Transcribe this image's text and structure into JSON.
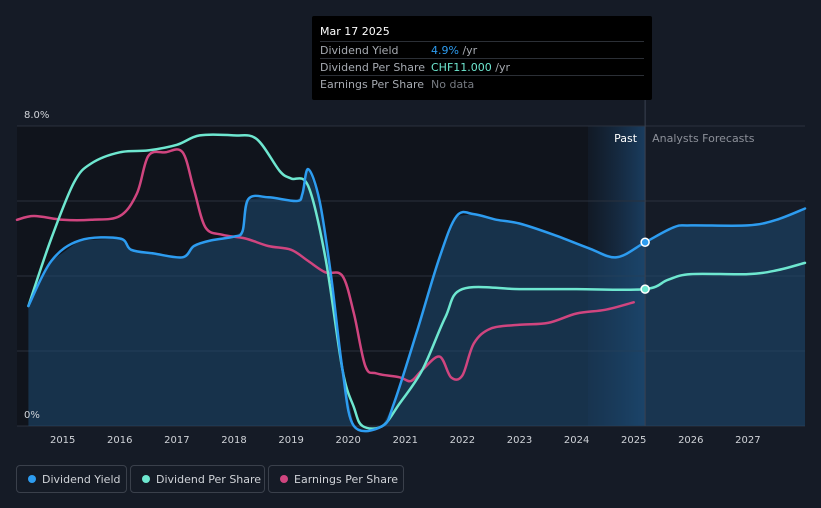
{
  "tooltip": {
    "date": "Mar 17 2025",
    "rows": [
      {
        "label": "Dividend Yield",
        "value": "4.9%",
        "unit": " /yr",
        "color": "#2d9cf0"
      },
      {
        "label": "Dividend Per Share",
        "value": "CHF11.000",
        "unit": " /yr",
        "color": "#6ee7d0"
      },
      {
        "label": "Earnings Per Share",
        "value": "No data",
        "unit": "",
        "color": "#777b82"
      }
    ]
  },
  "legend": [
    {
      "label": "Dividend Yield",
      "color": "#2d9cf0"
    },
    {
      "label": "Dividend Per Share",
      "color": "#6ee7d0"
    },
    {
      "label": "Earnings Per Share",
      "color": "#d0457f"
    }
  ],
  "chart_data": {
    "type": "line",
    "y_tick_labels": [
      "8.0%",
      "0%"
    ],
    "ylim": [
      0,
      8
    ],
    "xlim": [
      2014.2,
      2028.0
    ],
    "x_ticks": [
      2015,
      2016,
      2017,
      2018,
      2019,
      2020,
      2021,
      2022,
      2023,
      2024,
      2025,
      2026,
      2027
    ],
    "forecast_start": 2025.2,
    "past_label": "Past",
    "forecast_label": "Analysts Forecasts",
    "series": [
      {
        "name": "Dividend Yield",
        "color": "#2d9cf0",
        "unit": "%",
        "points": [
          [
            2014.4,
            3.2
          ],
          [
            2014.8,
            4.4
          ],
          [
            2015.3,
            4.95
          ],
          [
            2016.0,
            5.0
          ],
          [
            2016.2,
            4.7
          ],
          [
            2016.6,
            4.6
          ],
          [
            2017.1,
            4.5
          ],
          [
            2017.3,
            4.8
          ],
          [
            2017.6,
            4.95
          ],
          [
            2018.0,
            5.05
          ],
          [
            2018.15,
            5.2
          ],
          [
            2018.25,
            6.05
          ],
          [
            2018.6,
            6.1
          ],
          [
            2019.1,
            6.0
          ],
          [
            2019.2,
            6.2
          ],
          [
            2019.3,
            6.85
          ],
          [
            2019.5,
            6.0
          ],
          [
            2019.7,
            4.0
          ],
          [
            2019.9,
            1.5
          ],
          [
            2020.1,
            0.0
          ],
          [
            2020.6,
            0.0
          ],
          [
            2020.8,
            0.6
          ],
          [
            2021.2,
            2.5
          ],
          [
            2021.6,
            4.5
          ],
          [
            2021.9,
            5.6
          ],
          [
            2022.2,
            5.65
          ],
          [
            2022.6,
            5.5
          ],
          [
            2023.0,
            5.4
          ],
          [
            2023.6,
            5.1
          ],
          [
            2024.2,
            4.75
          ],
          [
            2024.7,
            4.5
          ],
          [
            2025.2,
            4.9
          ],
          [
            2025.7,
            5.3
          ],
          [
            2026.0,
            5.35
          ],
          [
            2027.0,
            5.35
          ],
          [
            2027.5,
            5.5
          ],
          [
            2028.0,
            5.8
          ]
        ]
      },
      {
        "name": "Dividend Per Share",
        "color": "#6ee7d0",
        "points": [
          [
            2014.4,
            3.2
          ],
          [
            2014.8,
            5.0
          ],
          [
            2015.2,
            6.5
          ],
          [
            2015.5,
            7.0
          ],
          [
            2016.0,
            7.3
          ],
          [
            2016.5,
            7.35
          ],
          [
            2017.0,
            7.5
          ],
          [
            2017.4,
            7.75
          ],
          [
            2018.0,
            7.75
          ],
          [
            2018.4,
            7.65
          ],
          [
            2018.8,
            6.8
          ],
          [
            2019.0,
            6.6
          ],
          [
            2019.3,
            6.4
          ],
          [
            2019.6,
            4.5
          ],
          [
            2019.9,
            1.5
          ],
          [
            2020.1,
            0.5
          ],
          [
            2020.25,
            0.0
          ],
          [
            2020.6,
            0.0
          ],
          [
            2020.9,
            0.6
          ],
          [
            2021.3,
            1.5
          ],
          [
            2021.7,
            2.9
          ],
          [
            2022.0,
            3.65
          ],
          [
            2023.0,
            3.65
          ],
          [
            2024.0,
            3.65
          ],
          [
            2025.2,
            3.65
          ],
          [
            2025.6,
            3.9
          ],
          [
            2026.0,
            4.05
          ],
          [
            2027.0,
            4.05
          ],
          [
            2027.5,
            4.15
          ],
          [
            2028.0,
            4.35
          ]
        ]
      },
      {
        "name": "Earnings Per Share",
        "color": "#d0457f",
        "points": [
          [
            2014.2,
            5.5
          ],
          [
            2014.5,
            5.6
          ],
          [
            2015.0,
            5.5
          ],
          [
            2015.5,
            5.5
          ],
          [
            2016.0,
            5.6
          ],
          [
            2016.3,
            6.2
          ],
          [
            2016.5,
            7.2
          ],
          [
            2016.8,
            7.3
          ],
          [
            2017.1,
            7.3
          ],
          [
            2017.3,
            6.3
          ],
          [
            2017.5,
            5.3
          ],
          [
            2017.8,
            5.1
          ],
          [
            2018.2,
            5.0
          ],
          [
            2018.6,
            4.8
          ],
          [
            2019.0,
            4.7
          ],
          [
            2019.3,
            4.4
          ],
          [
            2019.6,
            4.1
          ],
          [
            2019.9,
            4.0
          ],
          [
            2020.1,
            3.0
          ],
          [
            2020.3,
            1.6
          ],
          [
            2020.5,
            1.4
          ],
          [
            2020.9,
            1.3
          ],
          [
            2021.1,
            1.2
          ],
          [
            2021.3,
            1.5
          ],
          [
            2021.6,
            1.85
          ],
          [
            2021.8,
            1.3
          ],
          [
            2022.0,
            1.35
          ],
          [
            2022.2,
            2.2
          ],
          [
            2022.5,
            2.6
          ],
          [
            2023.0,
            2.7
          ],
          [
            2023.5,
            2.75
          ],
          [
            2024.0,
            3.0
          ],
          [
            2024.5,
            3.1
          ],
          [
            2025.0,
            3.3
          ]
        ]
      }
    ],
    "markers": [
      {
        "series": "Dividend Yield",
        "x": 2025.2,
        "y": 4.9
      },
      {
        "series": "Dividend Per Share",
        "x": 2025.2,
        "y": 3.65
      }
    ],
    "grid": true
  }
}
